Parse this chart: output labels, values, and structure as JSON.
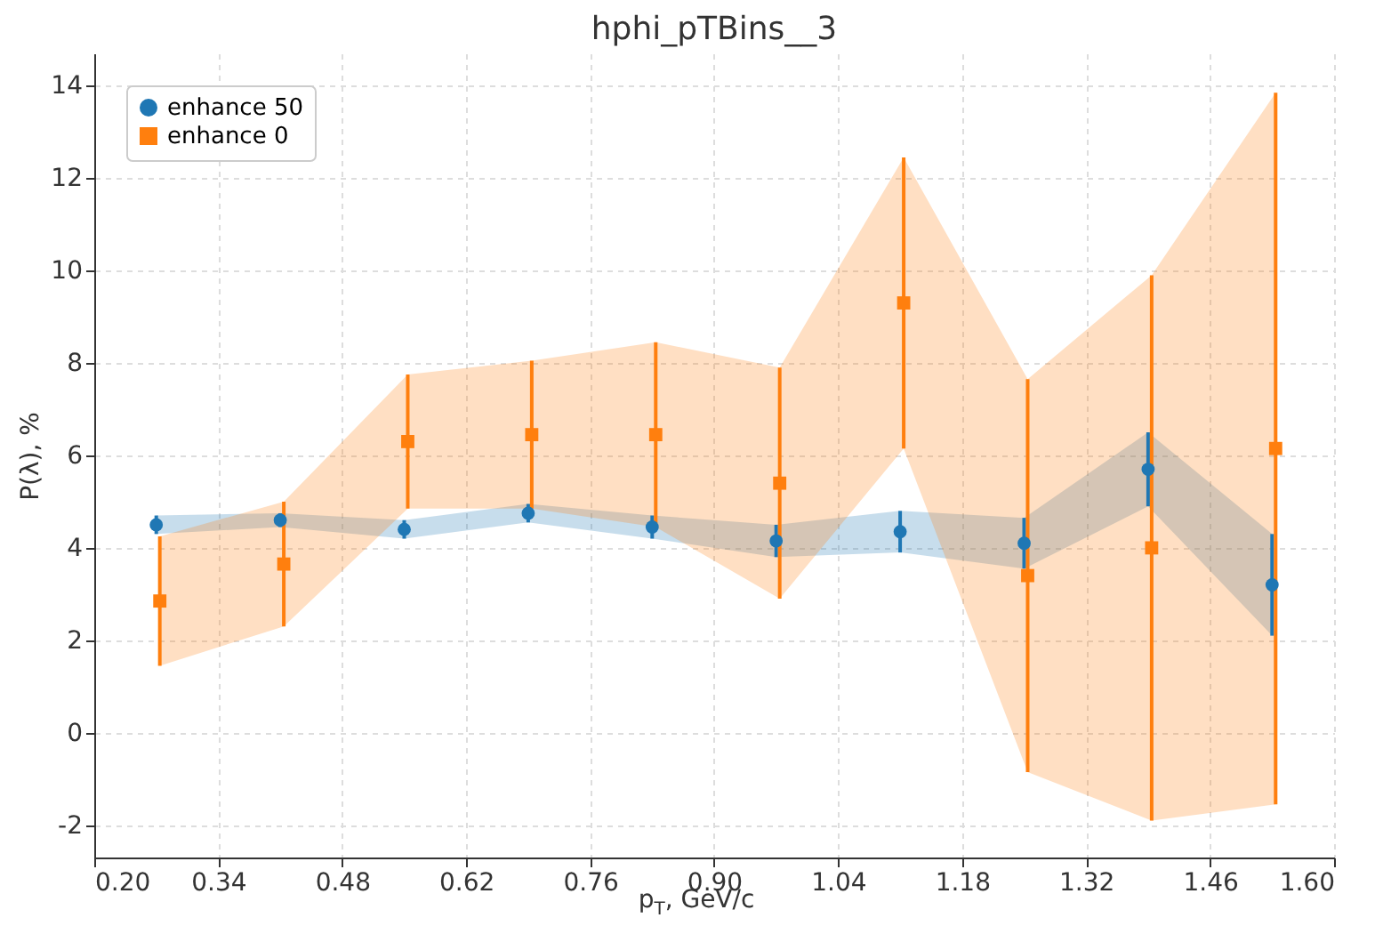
{
  "chart_data": {
    "type": "scatter",
    "title": "hphi_pTBins__3",
    "xlabel": "p$_{T}$, GeV/c",
    "ylabel": "P(λ), %",
    "xlim": [
      0.2,
      1.6
    ],
    "xticks": [
      {
        "value": 0.2,
        "label": "0.20"
      },
      0.34,
      0.48,
      0.62,
      0.76,
      {
        "value": 0.9,
        "label": "0.90"
      },
      1.04,
      1.18,
      1.32,
      1.46,
      {
        "value": 1.6,
        "label": "1.60"
      }
    ],
    "ylim": [
      -2.7,
      14.7
    ],
    "yticks": [
      -2,
      0,
      2,
      4,
      6,
      8,
      10,
      12,
      14
    ],
    "grid": true,
    "legend": "top left",
    "series": [
      {
        "name": "enhance 50",
        "color": "#1f77b4",
        "marker": "circle",
        "x": [
          0.27,
          0.41,
          0.55,
          0.69,
          0.83,
          0.97,
          1.11,
          1.25,
          1.39,
          1.53
        ],
        "values": [
          4.5,
          4.6,
          4.4,
          4.75,
          4.45,
          4.15,
          4.35,
          4.1,
          5.7,
          3.2
        ],
        "errors": [
          0.2,
          0.15,
          0.2,
          0.2,
          0.25,
          0.35,
          0.45,
          0.55,
          0.8,
          1.1
        ],
        "lower": [
          4.3,
          4.45,
          4.2,
          4.55,
          4.2,
          3.8,
          3.9,
          3.55,
          4.9,
          2.1
        ],
        "upper": [
          4.7,
          4.75,
          4.6,
          4.95,
          4.7,
          4.5,
          4.8,
          4.65,
          6.5,
          4.3
        ]
      },
      {
        "name": "enhance 0",
        "color": "#ff7f0e",
        "marker": "square",
        "x": [
          0.274,
          0.414,
          0.554,
          0.694,
          0.834,
          0.974,
          1.114,
          1.254,
          1.394,
          1.534
        ],
        "values": [
          2.85,
          3.65,
          6.3,
          6.45,
          6.45,
          5.4,
          9.3,
          3.4,
          4.0,
          6.15
        ],
        "errors": [
          1.4,
          1.35,
          1.45,
          1.6,
          2.0,
          2.5,
          3.15,
          4.25,
          5.9,
          7.7
        ],
        "lower": [
          1.45,
          2.3,
          4.85,
          4.85,
          4.45,
          2.9,
          6.15,
          -0.85,
          -1.9,
          -1.55
        ],
        "upper": [
          4.25,
          5.0,
          7.75,
          8.05,
          8.45,
          7.9,
          12.45,
          7.65,
          9.9,
          13.85
        ]
      }
    ]
  }
}
